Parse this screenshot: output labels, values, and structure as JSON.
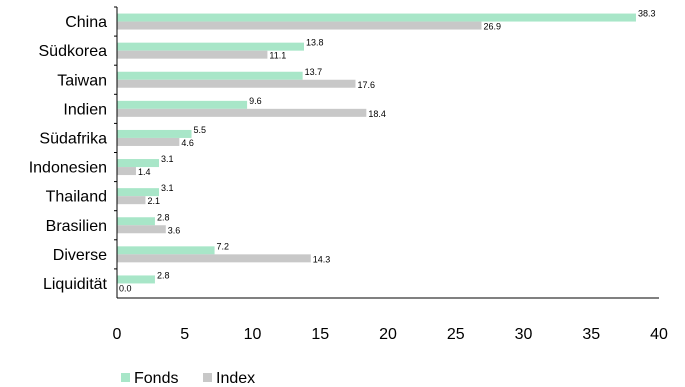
{
  "chart_data": {
    "type": "bar",
    "orientation": "horizontal",
    "categories": [
      "China",
      "Südkorea",
      "Taiwan",
      "Indien",
      "Südafrika",
      "Indonesien",
      "Thailand",
      "Brasilien",
      "Diverse",
      "Liquidität"
    ],
    "series": [
      {
        "name": "Fonds",
        "color": "#a8e6c8",
        "values": [
          38.3,
          13.8,
          13.7,
          9.6,
          5.5,
          3.1,
          3.1,
          2.8,
          7.2,
          2.8
        ],
        "labels": [
          "38.3",
          "13.8",
          "13.7",
          "9.6",
          "5.5",
          "3.1",
          "3.1",
          "2.8",
          "7.2",
          "2.8"
        ]
      },
      {
        "name": "Index",
        "color": "#c8c8c8",
        "values": [
          26.9,
          11.1,
          17.6,
          18.4,
          4.6,
          1.4,
          2.1,
          3.6,
          14.3,
          0.0
        ],
        "labels": [
          "26.9",
          "11.1",
          "17.6",
          "18.4",
          "4.6",
          "1.4",
          "2.1",
          "3.6",
          "14.3",
          "0.0"
        ]
      }
    ],
    "xlim": [
      0,
      40
    ],
    "xticks": [
      "0",
      "5",
      "10",
      "15",
      "20",
      "25",
      "30",
      "35",
      "40"
    ],
    "xtick_values": [
      0,
      5,
      10,
      15,
      20,
      25,
      30,
      35,
      40
    ],
    "grid": false,
    "legend_position": "bottom-left"
  }
}
